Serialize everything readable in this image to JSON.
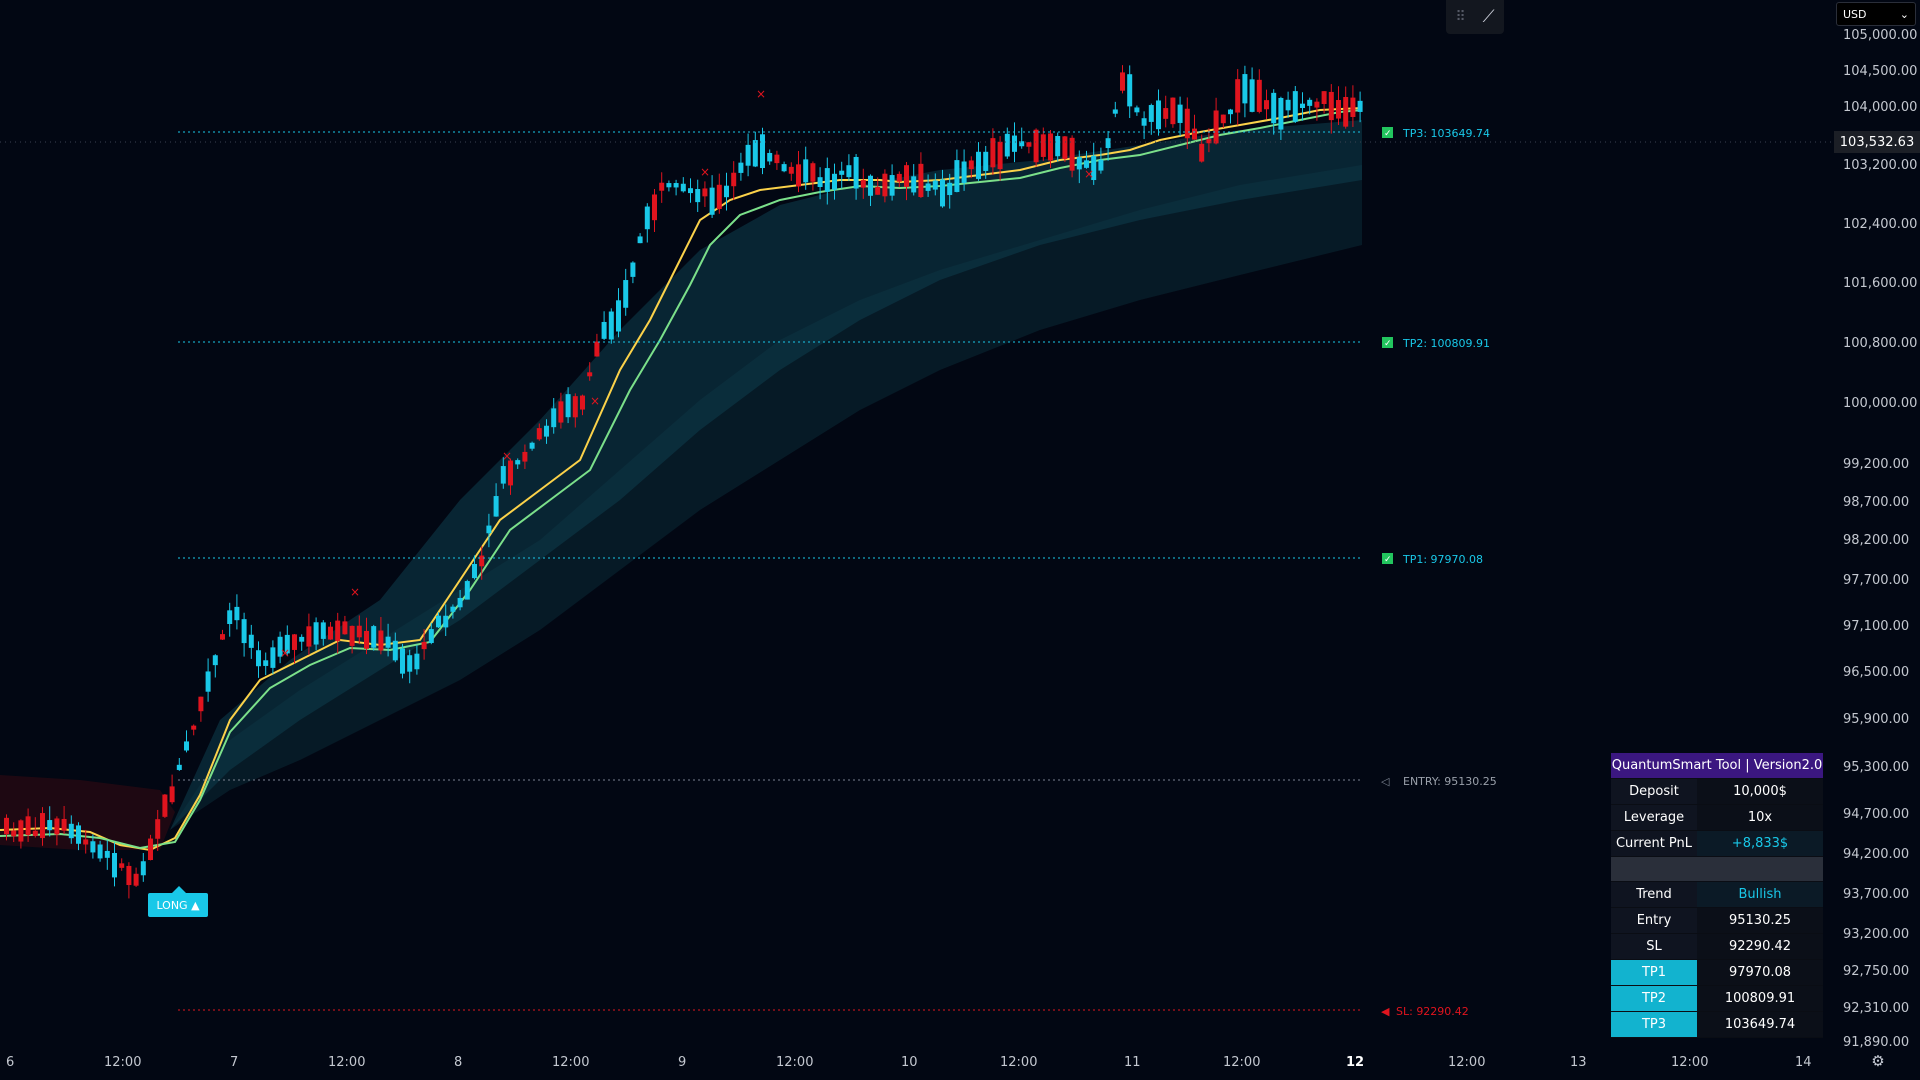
{
  "price_axis": {
    "labels": [
      "105,000.00",
      "104,500.00",
      "104,000.00",
      "103,200.00",
      "102,400.00",
      "101,600.00",
      "100,800.00",
      "100,000.00",
      "99,200.00",
      "98,700.00",
      "98,200.00",
      "97,700.00",
      "97,100.00",
      "96,500.00",
      "95,900.00",
      "95,300.00",
      "94,700.00",
      "94,200.00",
      "93,700.00",
      "93,200.00",
      "92,750.00",
      "92,310.00",
      "91,890.00"
    ],
    "current_price": "103,532.63"
  },
  "time_axis": {
    "labels": [
      "6",
      "12:00",
      "7",
      "12:00",
      "8",
      "12:00",
      "9",
      "12:00",
      "10",
      "12:00",
      "11",
      "12:00",
      "12",
      "12:00",
      "13",
      "12:00",
      "14"
    ]
  },
  "toolbar": {
    "grip_icon": "grip-icon",
    "draw_icon": "brush-icon"
  },
  "currency": {
    "value": "USD",
    "chevron": "⌄"
  },
  "levels": {
    "tp3": "TP3: 103649.74",
    "tp2": "TP2: 100809.91",
    "tp1": "TP1: 97970.08",
    "entry": "ENTRY: 95130.25",
    "sl": "SL: 92290.42"
  },
  "signal": {
    "label": "LONG ▲"
  },
  "panel": {
    "title": "QuantumSmart Tool | Version2.0",
    "rows": [
      {
        "label": "Deposit",
        "value": "10,000$"
      },
      {
        "label": "Leverage",
        "value": "10x"
      },
      {
        "label": "Current PnL",
        "value": "+8,833$"
      }
    ],
    "trend_label": "Trend",
    "trend_value": "Bullish",
    "entry_label": "Entry",
    "entry_value": "95130.25",
    "sl_label": "SL",
    "sl_value": "92290.42",
    "tp1_label": "TP1",
    "tp1_value": "97970.08",
    "tp2_label": "TP2",
    "tp2_value": "100809.91",
    "tp3_label": "TP3",
    "tp3_value": "103649.74"
  },
  "colors": {
    "bull": "#19c8e8",
    "bear": "#e0141e",
    "tp_green": "#22c55e",
    "sl_red": "#e0141e",
    "panel_title": "#3b1780"
  },
  "settings_icon": "gear-icon"
}
